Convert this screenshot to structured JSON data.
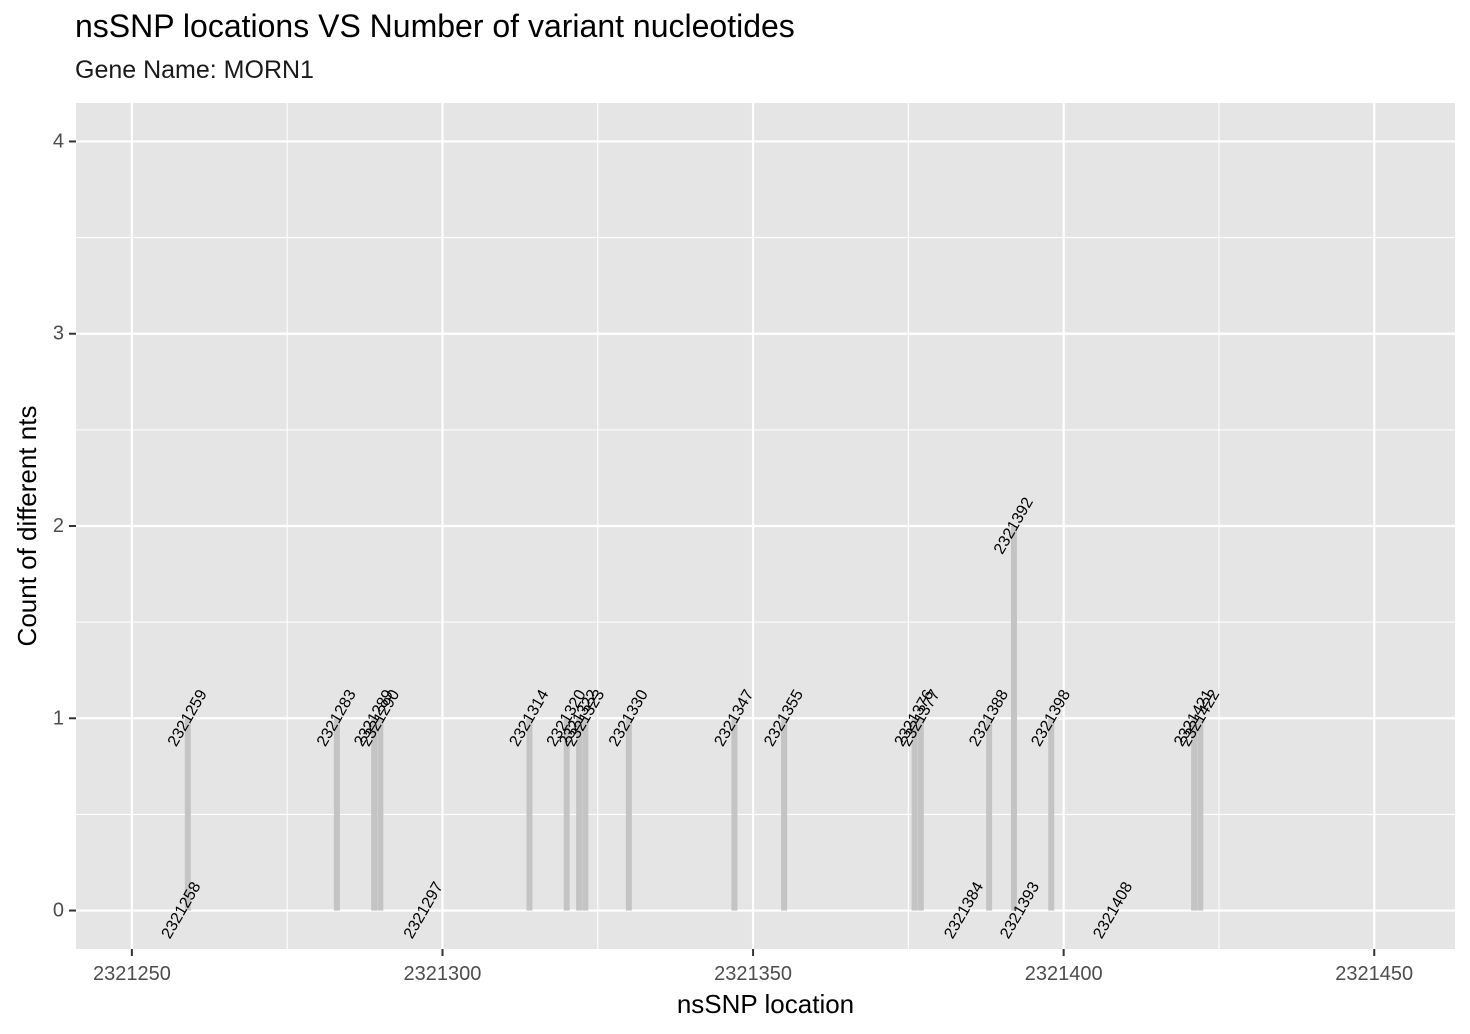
{
  "title": "nsSNP locations VS Number of variant nucleotides",
  "subtitle": "Gene Name: MORN1",
  "chart_data": {
    "type": "bar",
    "xlabel": "nsSNP location",
    "ylabel": "Count of different nts",
    "xlim": [
      2321241,
      2321463
    ],
    "ylim": [
      -0.2,
      4.2
    ],
    "x_ticks": [
      2321250,
      2321300,
      2321350,
      2321400,
      2321450
    ],
    "x_tick_labels": [
      "2321250",
      "2321300",
      "2321350",
      "2321400",
      "2321450"
    ],
    "y_ticks": [
      0,
      1,
      2,
      3,
      4
    ],
    "y_tick_labels": [
      "0",
      "1",
      "2",
      "3",
      "4"
    ],
    "grid": true,
    "points": [
      {
        "x": 2321258,
        "y": 0,
        "label": "2321258"
      },
      {
        "x": 2321259,
        "y": 1,
        "label": "2321259"
      },
      {
        "x": 2321283,
        "y": 1,
        "label": "2321283"
      },
      {
        "x": 2321289,
        "y": 1,
        "label": "2321289"
      },
      {
        "x": 2321290,
        "y": 1,
        "label": "2321290"
      },
      {
        "x": 2321297,
        "y": 0,
        "label": "2321297"
      },
      {
        "x": 2321314,
        "y": 1,
        "label": "2321314"
      },
      {
        "x": 2321320,
        "y": 1,
        "label": "2321320"
      },
      {
        "x": 2321322,
        "y": 1,
        "label": "2321322"
      },
      {
        "x": 2321323,
        "y": 1,
        "label": "2321323"
      },
      {
        "x": 2321330,
        "y": 1,
        "label": "2321330"
      },
      {
        "x": 2321347,
        "y": 1,
        "label": "2321347"
      },
      {
        "x": 2321355,
        "y": 1,
        "label": "2321355"
      },
      {
        "x": 2321376,
        "y": 1,
        "label": "2321376"
      },
      {
        "x": 2321377,
        "y": 1,
        "label": "2321377"
      },
      {
        "x": 2321384,
        "y": 0,
        "label": "2321384"
      },
      {
        "x": 2321388,
        "y": 1,
        "label": "2321388"
      },
      {
        "x": 2321392,
        "y": 2,
        "label": "2321392"
      },
      {
        "x": 2321393,
        "y": 0,
        "label": "2321393"
      },
      {
        "x": 2321398,
        "y": 1,
        "label": "2321398"
      },
      {
        "x": 2321408,
        "y": 0,
        "label": "2321408"
      },
      {
        "x": 2321421,
        "y": 1,
        "label": "2321421"
      },
      {
        "x": 2321422,
        "y": 1,
        "label": "2321422"
      }
    ],
    "colors": {
      "panel_background": "#e5e5e5",
      "grid_major": "#ffffff",
      "bar_fill": "#c4c4c4"
    }
  }
}
